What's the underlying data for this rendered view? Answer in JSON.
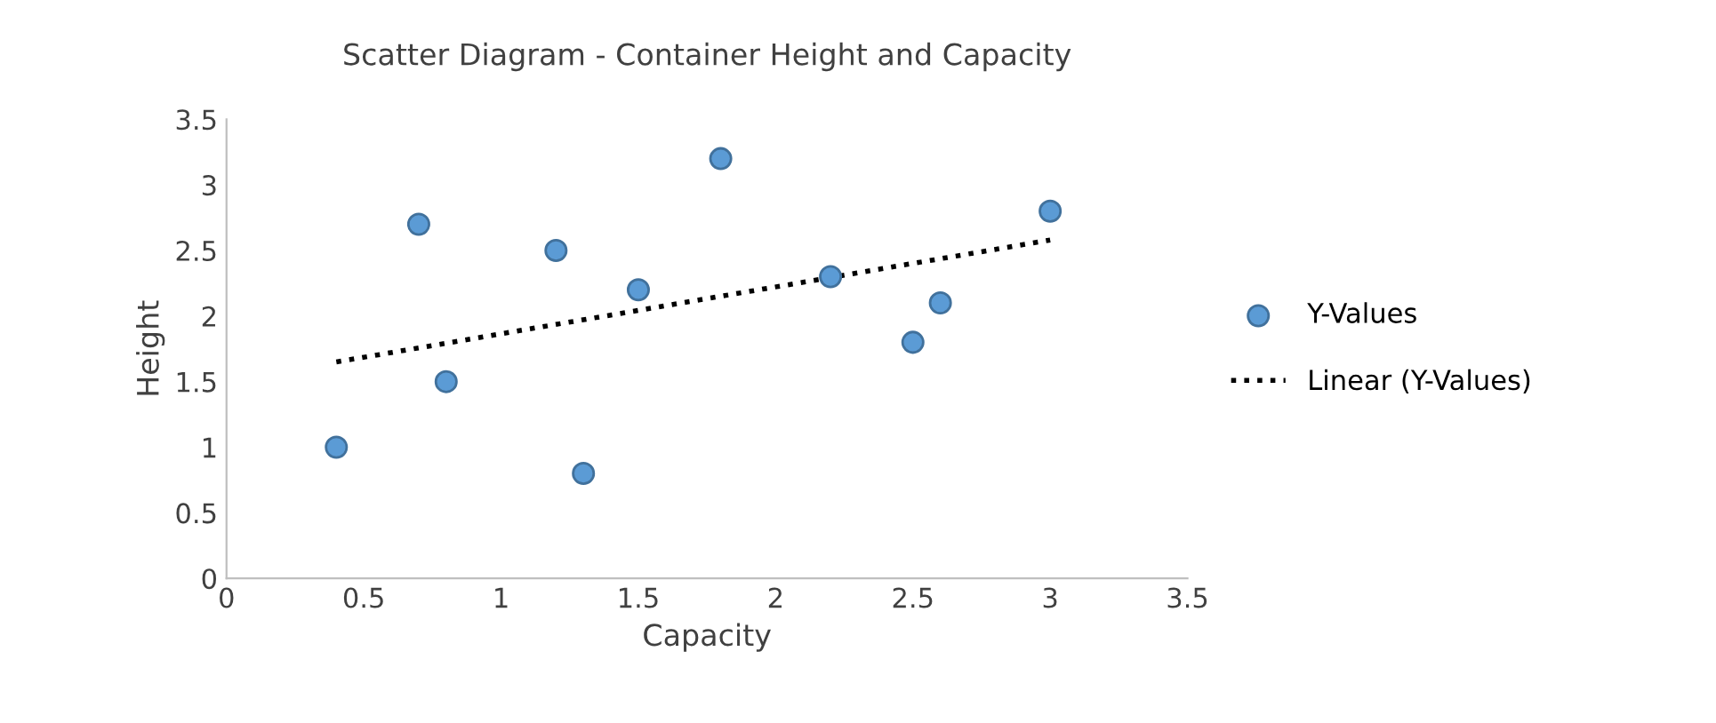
{
  "chart_data": {
    "type": "scatter",
    "title": "Scatter Diagram - Container Height and Capacity",
    "xlabel": "Capacity",
    "ylabel": "Height",
    "series": [
      {
        "name": "Y-Values",
        "color": "#5b9bd5",
        "marker": "circle",
        "x": [
          0.4,
          0.7,
          0.8,
          1.2,
          1.3,
          1.5,
          1.8,
          2.2,
          2.5,
          2.6,
          3.0
        ],
        "values": [
          1.0,
          2.7,
          1.5,
          2.5,
          0.8,
          2.2,
          3.2,
          2.3,
          1.8,
          2.1,
          2.8
        ]
      },
      {
        "name": "Linear (Y-Values)",
        "type": "line",
        "color": "#000000",
        "line_style": "dotted",
        "marker": "none",
        "x": [
          0.4,
          3.0
        ],
        "values": [
          1.65,
          2.58
        ]
      }
    ],
    "xlim": [
      0,
      3.5
    ],
    "xticks": [
      0,
      0.5,
      1,
      1.5,
      2,
      2.5,
      3,
      3.5
    ],
    "ylim": [
      0,
      3.5
    ],
    "yticks": [
      0,
      0.5,
      1,
      1.5,
      2,
      2.5,
      3,
      3.5
    ],
    "grid": false,
    "legend": "right"
  }
}
